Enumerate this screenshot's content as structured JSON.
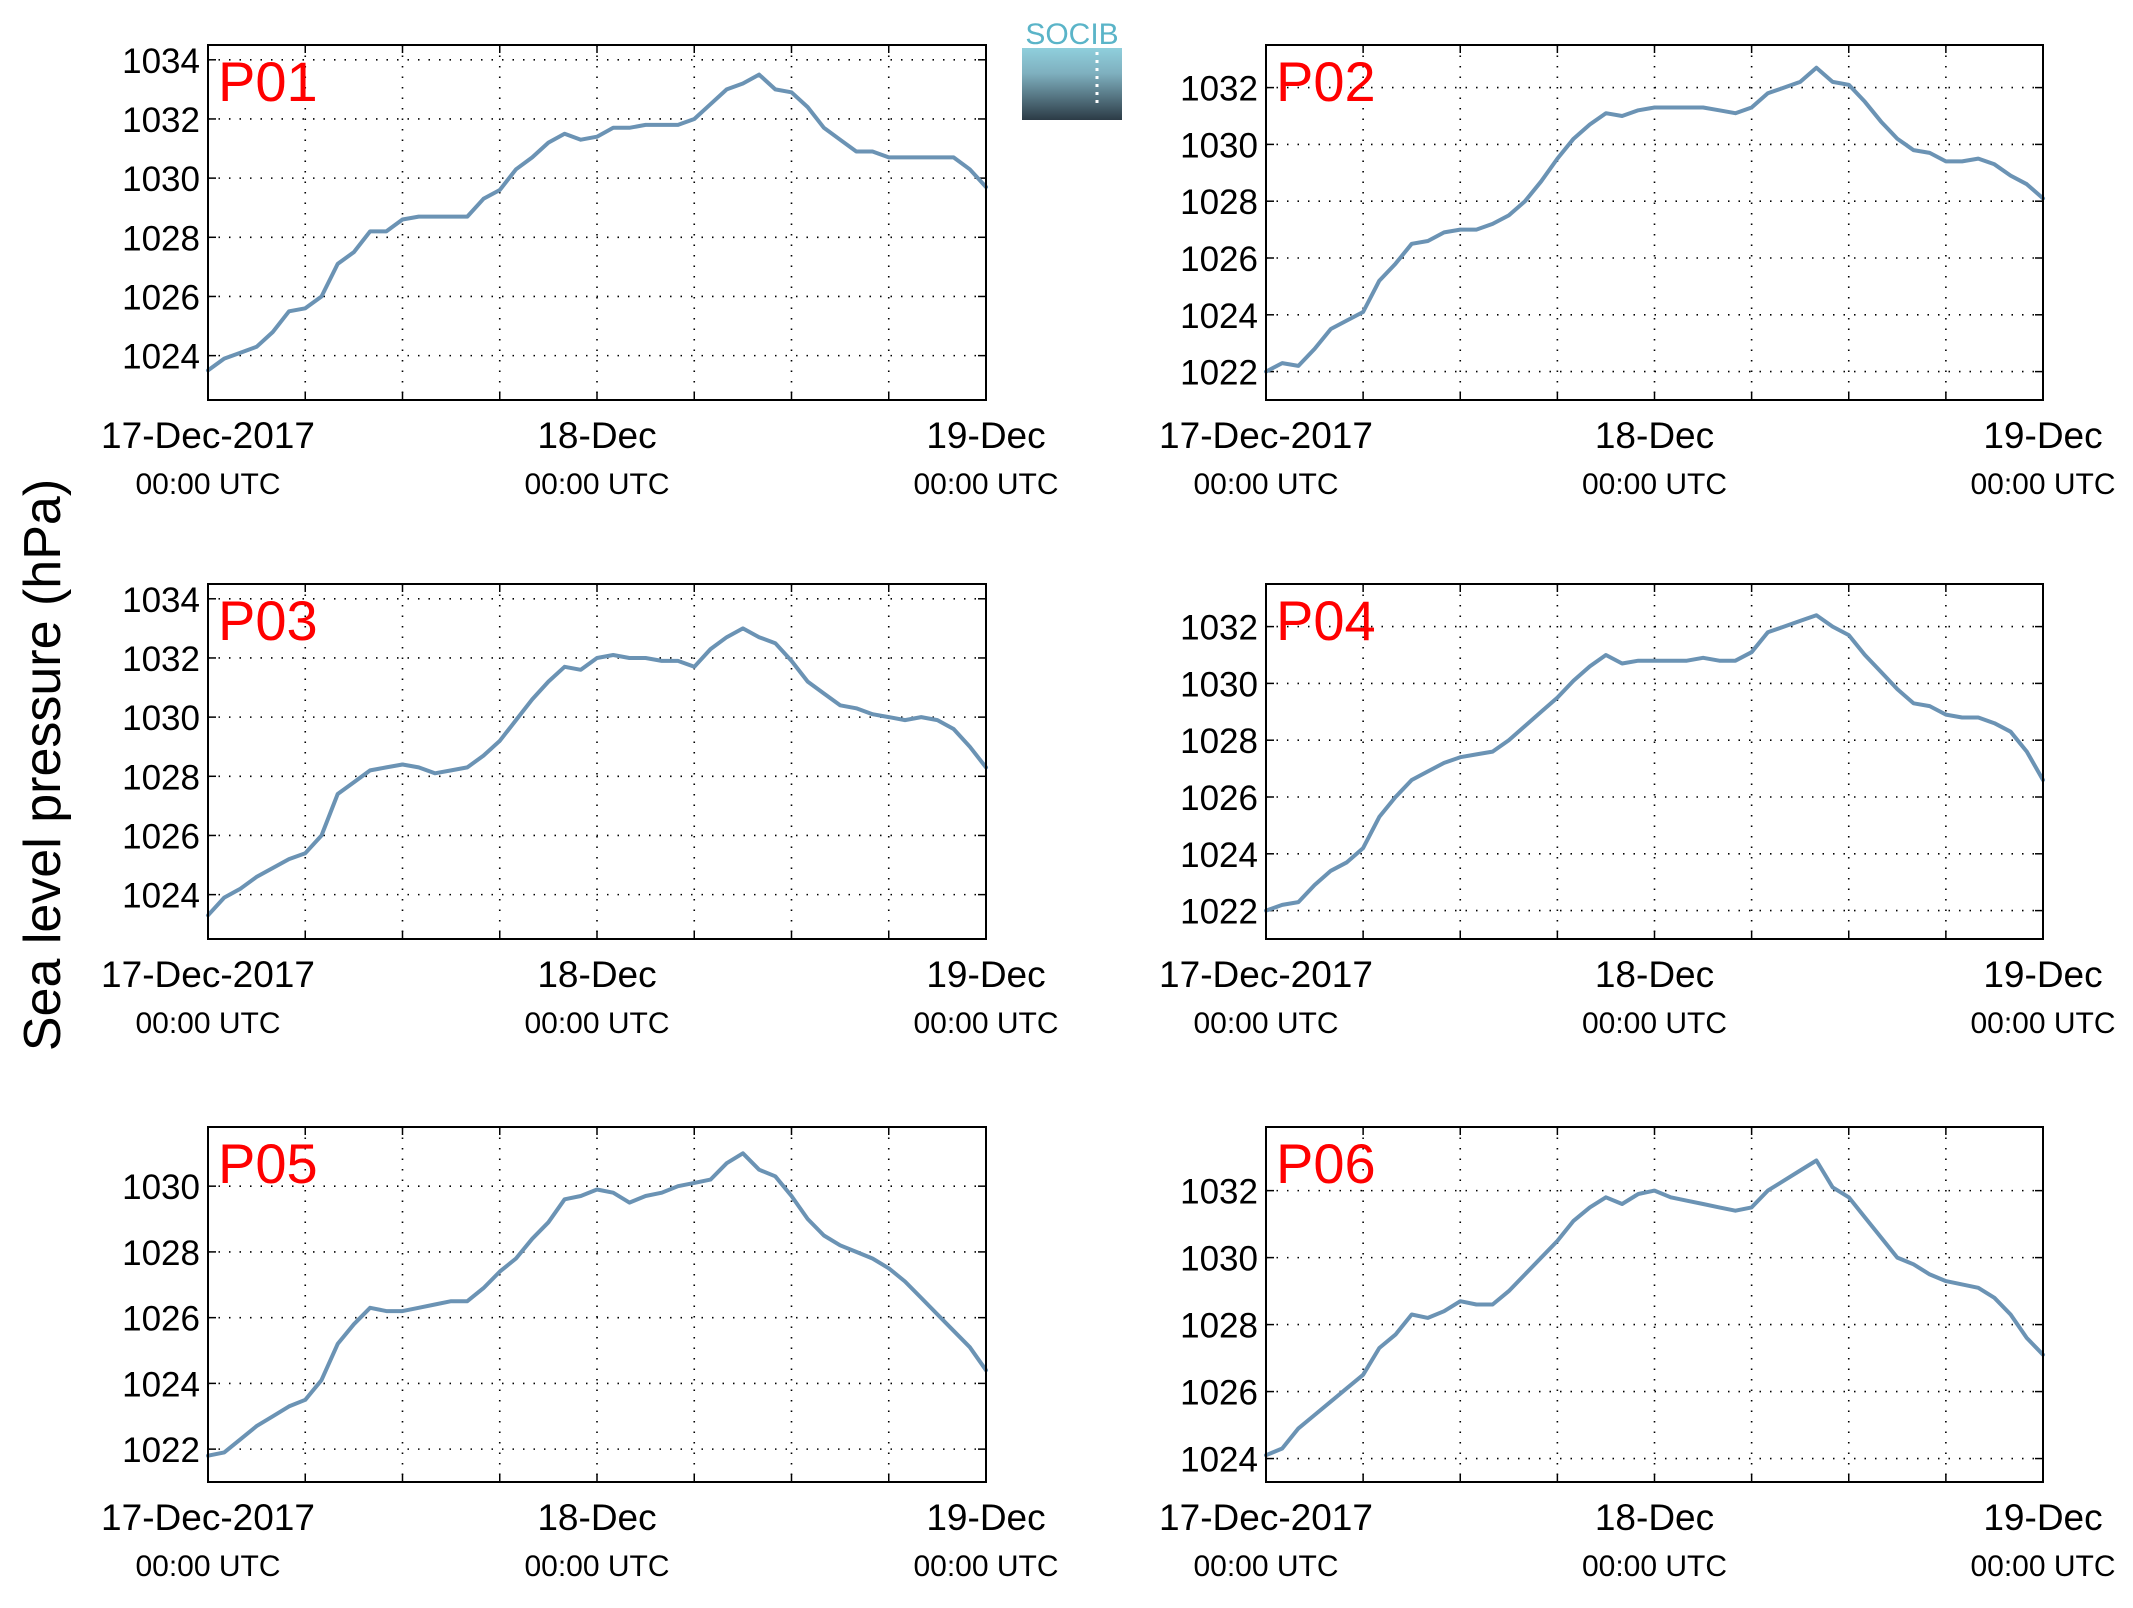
{
  "figure": {
    "ylabel": "Sea level pressure (hPa)",
    "logo_text": "SOCIB",
    "line_color": "#6b93b4",
    "title_color": "#ff0000",
    "grid": true
  },
  "chart_data": [
    {
      "type": "line",
      "title": "P01",
      "x_range": [
        "2017-12-17 00:00",
        "2017-12-19 00:00"
      ],
      "ylim": [
        1022.5,
        1034.5
      ],
      "yticks": [
        1024,
        1026,
        1028,
        1030,
        1032,
        1034
      ],
      "x_tick_labels": [
        {
          "date": "17-Dec-2017",
          "time": "00:00 UTC"
        },
        {
          "date": "18-Dec",
          "time": "00:00 UTC"
        },
        {
          "date": "19-Dec",
          "time": "00:00 UTC"
        }
      ],
      "series": [
        {
          "x_hours": [
            0,
            1,
            2,
            3,
            4,
            5,
            6,
            7,
            8,
            9,
            10,
            11,
            12,
            13,
            14,
            15,
            16,
            17,
            18,
            19,
            20,
            21,
            22,
            23,
            24,
            25,
            26,
            27,
            28,
            29,
            30,
            31,
            32,
            33,
            34,
            35,
            36,
            37,
            38,
            39,
            40,
            41,
            42,
            43,
            44,
            45,
            46,
            47,
            48
          ],
          "values": [
            1023.5,
            1023.9,
            1024.1,
            1024.3,
            1024.8,
            1025.5,
            1025.6,
            1026.0,
            1027.1,
            1027.5,
            1028.2,
            1028.2,
            1028.6,
            1028.7,
            1028.7,
            1028.7,
            1028.7,
            1029.3,
            1029.6,
            1030.3,
            1030.7,
            1031.2,
            1031.5,
            1031.3,
            1031.4,
            1031.7,
            1031.7,
            1031.8,
            1031.8,
            1031.8,
            1032.0,
            1032.5,
            1033.0,
            1033.2,
            1033.5,
            1033.0,
            1032.9,
            1032.4,
            1031.7,
            1031.3,
            1030.9,
            1030.9,
            1030.7,
            1030.7,
            1030.7,
            1030.7,
            1030.7,
            1030.3,
            1029.7
          ]
        }
      ]
    },
    {
      "type": "line",
      "title": "P02",
      "x_range": [
        "2017-12-17 00:00",
        "2017-12-19 00:00"
      ],
      "ylim": [
        1021,
        1033.5
      ],
      "yticks": [
        1022,
        1024,
        1026,
        1028,
        1030,
        1032
      ],
      "x_tick_labels": [
        {
          "date": "17-Dec-2017",
          "time": "00:00 UTC"
        },
        {
          "date": "18-Dec",
          "time": "00:00 UTC"
        },
        {
          "date": "19-Dec",
          "time": "00:00 UTC"
        }
      ],
      "series": [
        {
          "x_hours": [
            0,
            1,
            2,
            3,
            4,
            5,
            6,
            7,
            8,
            9,
            10,
            11,
            12,
            13,
            14,
            15,
            16,
            17,
            18,
            19,
            20,
            21,
            22,
            23,
            24,
            25,
            26,
            27,
            28,
            29,
            30,
            31,
            32,
            33,
            34,
            35,
            36,
            37,
            38,
            39,
            40,
            41,
            42,
            43,
            44,
            45,
            46,
            47,
            48
          ],
          "values": [
            1022.0,
            1022.3,
            1022.2,
            1022.8,
            1023.5,
            1023.8,
            1024.1,
            1025.2,
            1025.8,
            1026.5,
            1026.6,
            1026.9,
            1027.0,
            1027.0,
            1027.2,
            1027.5,
            1028.0,
            1028.7,
            1029.5,
            1030.2,
            1030.7,
            1031.1,
            1031.0,
            1031.2,
            1031.3,
            1031.3,
            1031.3,
            1031.3,
            1031.2,
            1031.1,
            1031.3,
            1031.8,
            1032.0,
            1032.2,
            1032.7,
            1032.2,
            1032.1,
            1031.5,
            1030.8,
            1030.2,
            1029.8,
            1029.7,
            1029.4,
            1029.4,
            1029.5,
            1029.3,
            1028.9,
            1028.6,
            1028.1
          ]
        }
      ]
    },
    {
      "type": "line",
      "title": "P03",
      "x_range": [
        "2017-12-17 00:00",
        "2017-12-19 00:00"
      ],
      "ylim": [
        1022.5,
        1034.5
      ],
      "yticks": [
        1024,
        1026,
        1028,
        1030,
        1032,
        1034
      ],
      "x_tick_labels": [
        {
          "date": "17-Dec-2017",
          "time": "00:00 UTC"
        },
        {
          "date": "18-Dec",
          "time": "00:00 UTC"
        },
        {
          "date": "19-Dec",
          "time": "00:00 UTC"
        }
      ],
      "series": [
        {
          "x_hours": [
            0,
            1,
            2,
            3,
            4,
            5,
            6,
            7,
            8,
            9,
            10,
            11,
            12,
            13,
            14,
            15,
            16,
            17,
            18,
            19,
            20,
            21,
            22,
            23,
            24,
            25,
            26,
            27,
            28,
            29,
            30,
            31,
            32,
            33,
            34,
            35,
            36,
            37,
            38,
            39,
            40,
            41,
            42,
            43,
            44,
            45,
            46,
            47,
            48
          ],
          "values": [
            1023.3,
            1023.9,
            1024.2,
            1024.6,
            1024.9,
            1025.2,
            1025.4,
            1026.0,
            1027.4,
            1027.8,
            1028.2,
            1028.3,
            1028.4,
            1028.3,
            1028.1,
            1028.2,
            1028.3,
            1028.7,
            1029.2,
            1029.9,
            1030.6,
            1031.2,
            1031.7,
            1031.6,
            1032.0,
            1032.1,
            1032.0,
            1032.0,
            1031.9,
            1031.9,
            1031.7,
            1032.3,
            1032.7,
            1033.0,
            1032.7,
            1032.5,
            1031.9,
            1031.2,
            1030.8,
            1030.4,
            1030.3,
            1030.1,
            1030.0,
            1029.9,
            1030.0,
            1029.9,
            1029.6,
            1029.0,
            1028.3
          ]
        }
      ]
    },
    {
      "type": "line",
      "title": "P04",
      "x_range": [
        "2017-12-17 00:00",
        "2017-12-19 00:00"
      ],
      "ylim": [
        1021,
        1033.5
      ],
      "yticks": [
        1022,
        1024,
        1026,
        1028,
        1030,
        1032
      ],
      "x_tick_labels": [
        {
          "date": "17-Dec-2017",
          "time": "00:00 UTC"
        },
        {
          "date": "18-Dec",
          "time": "00:00 UTC"
        },
        {
          "date": "19-Dec",
          "time": "00:00 UTC"
        }
      ],
      "series": [
        {
          "x_hours": [
            0,
            1,
            2,
            3,
            4,
            5,
            6,
            7,
            8,
            9,
            10,
            11,
            12,
            13,
            14,
            15,
            16,
            17,
            18,
            19,
            20,
            21,
            22,
            23,
            24,
            25,
            26,
            27,
            28,
            29,
            30,
            31,
            32,
            33,
            34,
            35,
            36,
            37,
            38,
            39,
            40,
            41,
            42,
            43,
            44,
            45,
            46,
            47,
            48
          ],
          "values": [
            1022.0,
            1022.2,
            1022.3,
            1022.9,
            1023.4,
            1023.7,
            1024.2,
            1025.3,
            1026.0,
            1026.6,
            1026.9,
            1027.2,
            1027.4,
            1027.5,
            1027.6,
            1028.0,
            1028.5,
            1029.0,
            1029.5,
            1030.1,
            1030.6,
            1031.0,
            1030.7,
            1030.8,
            1030.8,
            1030.8,
            1030.8,
            1030.9,
            1030.8,
            1030.8,
            1031.1,
            1031.8,
            1032.0,
            1032.2,
            1032.4,
            1032.0,
            1031.7,
            1031.0,
            1030.4,
            1029.8,
            1029.3,
            1029.2,
            1028.9,
            1028.8,
            1028.8,
            1028.6,
            1028.3,
            1027.6,
            1026.6
          ]
        }
      ]
    },
    {
      "type": "line",
      "title": "P05",
      "x_range": [
        "2017-12-17 00:00",
        "2017-12-19 00:00"
      ],
      "ylim": [
        1021,
        1031.8
      ],
      "yticks": [
        1022,
        1024,
        1026,
        1028,
        1030
      ],
      "x_tick_labels": [
        {
          "date": "17-Dec-2017",
          "time": "00:00 UTC"
        },
        {
          "date": "18-Dec",
          "time": "00:00 UTC"
        },
        {
          "date": "19-Dec",
          "time": "00:00 UTC"
        }
      ],
      "series": [
        {
          "x_hours": [
            0,
            1,
            2,
            3,
            4,
            5,
            6,
            7,
            8,
            9,
            10,
            11,
            12,
            13,
            14,
            15,
            16,
            17,
            18,
            19,
            20,
            21,
            22,
            23,
            24,
            25,
            26,
            27,
            28,
            29,
            30,
            31,
            32,
            33,
            34,
            35,
            36,
            37,
            38,
            39,
            40,
            41,
            42,
            43,
            44,
            45,
            46,
            47,
            48
          ],
          "values": [
            1021.8,
            1021.9,
            1022.3,
            1022.7,
            1023.0,
            1023.3,
            1023.5,
            1024.1,
            1025.2,
            1025.8,
            1026.3,
            1026.2,
            1026.2,
            1026.3,
            1026.4,
            1026.5,
            1026.5,
            1026.9,
            1027.4,
            1027.8,
            1028.4,
            1028.9,
            1029.6,
            1029.7,
            1029.9,
            1029.8,
            1029.5,
            1029.7,
            1029.8,
            1030.0,
            1030.1,
            1030.2,
            1030.7,
            1031.0,
            1030.5,
            1030.3,
            1029.7,
            1029.0,
            1028.5,
            1028.2,
            1028.0,
            1027.8,
            1027.5,
            1027.1,
            1026.6,
            1026.1,
            1025.6,
            1025.1,
            1024.4
          ]
        }
      ]
    },
    {
      "type": "line",
      "title": "P06",
      "x_range": [
        "2017-12-17 00:00",
        "2017-12-19 00:00"
      ],
      "ylim": [
        1023.3,
        1033.9
      ],
      "yticks": [
        1024,
        1026,
        1028,
        1030,
        1032
      ],
      "x_tick_labels": [
        {
          "date": "17-Dec-2017",
          "time": "00:00 UTC"
        },
        {
          "date": "18-Dec",
          "time": "00:00 UTC"
        },
        {
          "date": "19-Dec",
          "time": "00:00 UTC"
        }
      ],
      "series": [
        {
          "x_hours": [
            0,
            1,
            2,
            3,
            4,
            5,
            6,
            7,
            8,
            9,
            10,
            11,
            12,
            13,
            14,
            15,
            16,
            17,
            18,
            19,
            20,
            21,
            22,
            23,
            24,
            25,
            26,
            27,
            28,
            29,
            30,
            31,
            32,
            33,
            34,
            35,
            36,
            37,
            38,
            39,
            40,
            41,
            42,
            43,
            44,
            45,
            46,
            47,
            48
          ],
          "values": [
            1024.1,
            1024.3,
            1024.9,
            1025.3,
            1025.7,
            1026.1,
            1026.5,
            1027.3,
            1027.7,
            1028.3,
            1028.2,
            1028.4,
            1028.7,
            1028.6,
            1028.6,
            1029.0,
            1029.5,
            1030.0,
            1030.5,
            1031.1,
            1031.5,
            1031.8,
            1031.6,
            1031.9,
            1032.0,
            1031.8,
            1031.7,
            1031.6,
            1031.5,
            1031.4,
            1031.5,
            1032.0,
            1032.3,
            1032.6,
            1032.9,
            1032.1,
            1031.8,
            1031.2,
            1030.6,
            1030.0,
            1029.8,
            1029.5,
            1029.3,
            1029.2,
            1029.1,
            1028.8,
            1028.3,
            1027.6,
            1027.1
          ]
        }
      ]
    }
  ]
}
